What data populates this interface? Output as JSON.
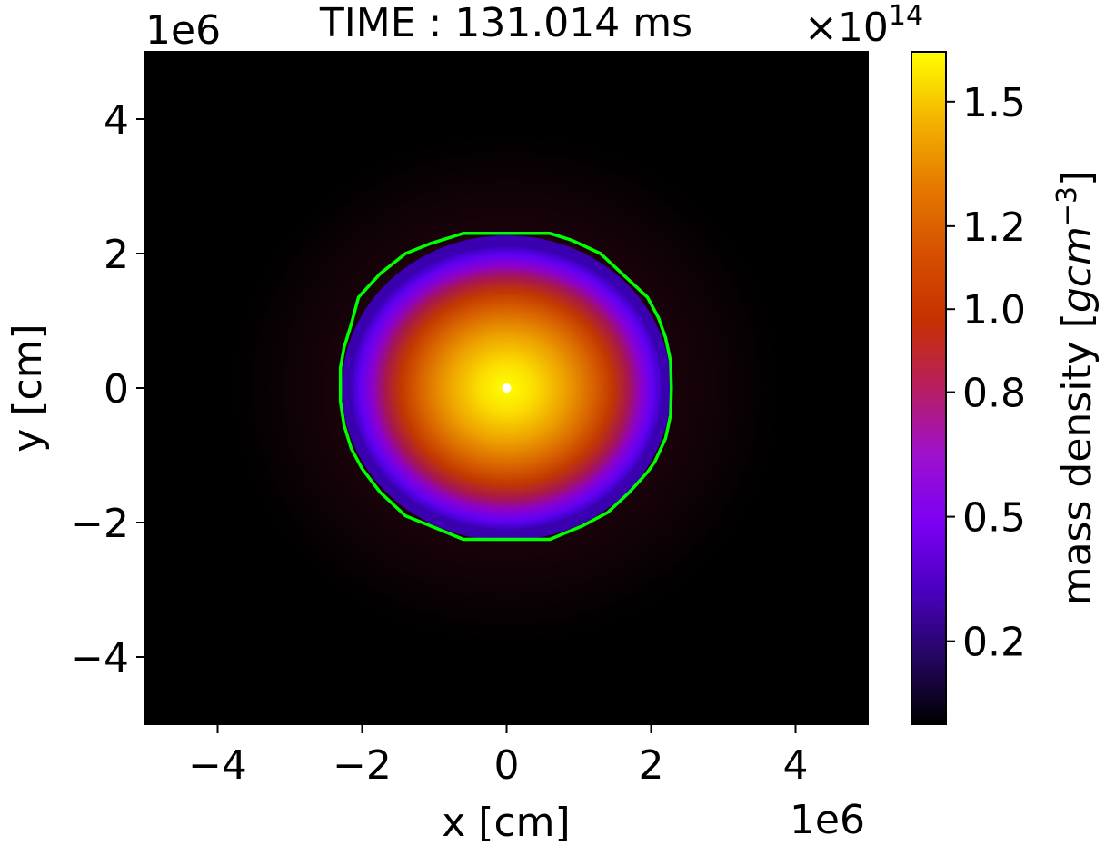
{
  "chart_data": {
    "type": "heatmap",
    "title": "TIME : 131.014 ms",
    "xlabel": "x [cm]",
    "ylabel": "y [cm]",
    "x_offset_label": "1e6",
    "y_offset_label": "1e6",
    "xlim": [
      -5,
      5
    ],
    "ylim": [
      -5,
      5
    ],
    "x_ticks": [
      -4,
      -2,
      0,
      2,
      4
    ],
    "y_ticks": [
      -4,
      -2,
      0,
      2,
      4
    ],
    "x_tick_labels": [
      "−4",
      "−2",
      "0",
      "2",
      "4"
    ],
    "y_tick_labels": [
      "−4",
      "−2",
      "0",
      "2",
      "4"
    ],
    "colorbar": {
      "label_main": "mass density [",
      "label_unit": "gcm",
      "label_exp": "−3",
      "label_close": "]",
      "offset_prefix": "×10",
      "offset_exp": "14",
      "range": [
        0.0,
        1.62
      ],
      "ticks": [
        0.2,
        0.5,
        0.8,
        1.0,
        1.2,
        1.5
      ],
      "tick_labels": [
        "0.2",
        "0.5",
        "0.8",
        "1.0",
        "1.2",
        "1.5"
      ],
      "colormap": "gnuplot"
    },
    "density_field": {
      "peak_density": 1.6,
      "center": [
        0,
        0
      ],
      "core_radius_x": 1.6,
      "core_radius_y": 1.55,
      "envelope_radius": 3.8
    },
    "contour": {
      "color": "#00ff00",
      "points": [
        [
          -0.6,
          2.3
        ],
        [
          0.6,
          2.3
        ],
        [
          0.9,
          2.2
        ],
        [
          1.3,
          2.0
        ],
        [
          1.7,
          1.6
        ],
        [
          1.95,
          1.35
        ],
        [
          2.1,
          1.05
        ],
        [
          2.2,
          0.75
        ],
        [
          2.27,
          0.4
        ],
        [
          2.28,
          0.0
        ],
        [
          2.27,
          -0.4
        ],
        [
          2.2,
          -0.75
        ],
        [
          2.05,
          -1.1
        ],
        [
          1.95,
          -1.25
        ],
        [
          1.7,
          -1.55
        ],
        [
          1.4,
          -1.85
        ],
        [
          1.05,
          -2.05
        ],
        [
          0.6,
          -2.25
        ],
        [
          -0.6,
          -2.25
        ],
        [
          -1.05,
          -2.05
        ],
        [
          -1.4,
          -1.9
        ],
        [
          -1.75,
          -1.55
        ],
        [
          -2.0,
          -1.2
        ],
        [
          -2.15,
          -0.9
        ],
        [
          -2.25,
          -0.55
        ],
        [
          -2.3,
          -0.2
        ],
        [
          -2.3,
          0.3
        ],
        [
          -2.25,
          0.6
        ],
        [
          -2.15,
          0.95
        ],
        [
          -2.05,
          1.35
        ],
        [
          -1.75,
          1.7
        ],
        [
          -1.4,
          2.0
        ],
        [
          -1.05,
          2.15
        ]
      ]
    },
    "center_marker": {
      "x": 0,
      "y": 0,
      "color": "#ffffff"
    }
  }
}
